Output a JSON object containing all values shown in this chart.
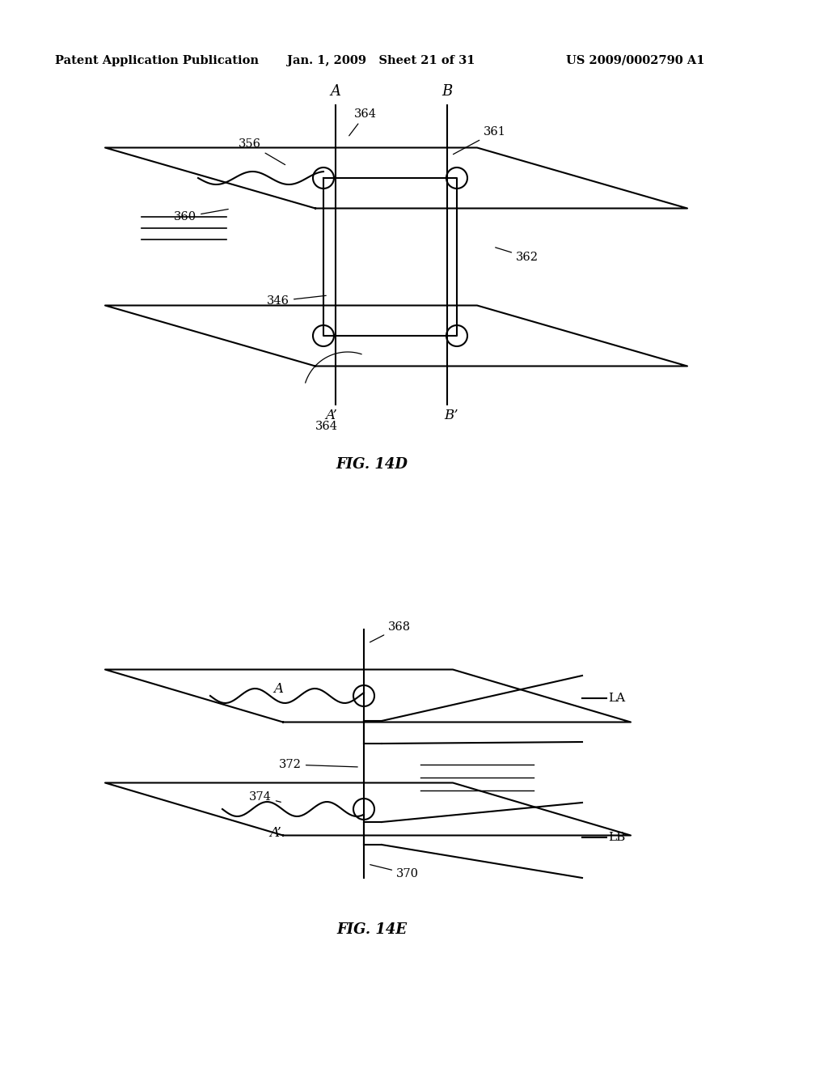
{
  "header_left": "Patent Application Publication",
  "header_mid": "Jan. 1, 2009   Sheet 21 of 31",
  "header_right": "US 2009/0002790 A1",
  "fig14d_label": "FIG. 14D",
  "fig14e_label": "FIG. 14E",
  "bg_color": "#ffffff",
  "line_color": "#000000",
  "font_size_header": 10.5,
  "font_size_label": 13,
  "font_size_ref": 10.5
}
